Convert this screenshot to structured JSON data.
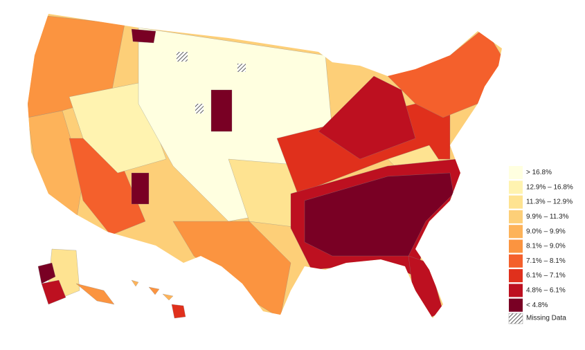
{
  "legend": {
    "items": [
      {
        "label": "> 16.8%",
        "color": "#ffffe0"
      },
      {
        "label": "12.9% – 16.8%",
        "color": "#fff3b0"
      },
      {
        "label": "11.3% – 12.9%",
        "color": "#fee391"
      },
      {
        "label": "9.9% – 11.3%",
        "color": "#fdcf78"
      },
      {
        "label": "9.0% – 9.9%",
        "color": "#fdb35a"
      },
      {
        "label": "8.1% – 9.0%",
        "color": "#fb9440"
      },
      {
        "label": "7.1% – 8.1%",
        "color": "#f4602c"
      },
      {
        "label": "6.1% – 7.1%",
        "color": "#e0301c"
      },
      {
        "label": "4.8% – 6.1%",
        "color": "#bd1020"
      },
      {
        "label": "< 4.8%",
        "color": "#790024"
      }
    ],
    "missing": "Missing Data"
  }
}
